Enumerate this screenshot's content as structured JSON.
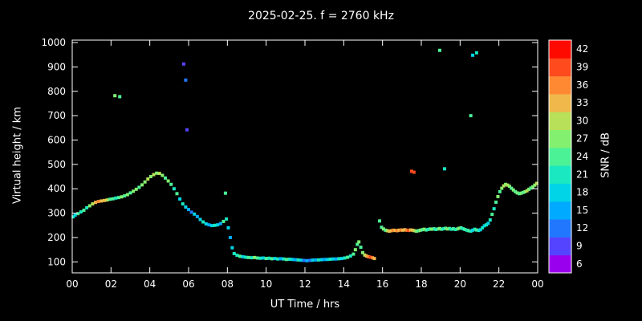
{
  "page": {
    "background": "#000000",
    "foreground": "#ffffff"
  },
  "chart_data": {
    "type": "scatter",
    "title": "2025-02-25. f = 2760 kHz",
    "xlabel": "UT Time / hrs",
    "ylabel": "Virtual height / km",
    "xlim": [
      0,
      24
    ],
    "ylim": [
      100,
      1000
    ],
    "grid": false,
    "x_tick_values": [
      0,
      2,
      4,
      6,
      8,
      10,
      12,
      14,
      16,
      18,
      20,
      22,
      24
    ],
    "x_tick_labels": [
      "00",
      "02",
      "04",
      "06",
      "08",
      "10",
      "12",
      "14",
      "16",
      "18",
      "20",
      "22",
      "00"
    ],
    "y_tick_values": [
      100,
      200,
      300,
      400,
      500,
      600,
      700,
      800,
      900,
      1000
    ],
    "colorbar": {
      "label": "SNR / dB",
      "tick_values": [
        6,
        9,
        12,
        15,
        18,
        21,
        24,
        27,
        30,
        33,
        36,
        39,
        42
      ],
      "colors": [
        "#9900ee",
        "#5544ff",
        "#2277ff",
        "#00aaff",
        "#00d4e6",
        "#1ae8c0",
        "#4cf296",
        "#84f070",
        "#b8e058",
        "#f0b84a",
        "#ff8832",
        "#ff4a1e",
        "#ff0a00"
      ]
    },
    "point_format": "[ut_hour, virtual_height_km, snr_db]",
    "points": [
      [
        0.05,
        285,
        21
      ],
      [
        0.15,
        292,
        18
      ],
      [
        0.3,
        298,
        24
      ],
      [
        0.45,
        305,
        21
      ],
      [
        0.6,
        312,
        24
      ],
      [
        0.75,
        322,
        21
      ],
      [
        0.9,
        330,
        27
      ],
      [
        1.05,
        338,
        30
      ],
      [
        1.2,
        344,
        33
      ],
      [
        1.35,
        348,
        36
      ],
      [
        1.5,
        350,
        33
      ],
      [
        1.65,
        352,
        33
      ],
      [
        1.8,
        354,
        30
      ],
      [
        1.95,
        357,
        24
      ],
      [
        2.1,
        359,
        24
      ],
      [
        2.25,
        362,
        21
      ],
      [
        2.4,
        364,
        24
      ],
      [
        2.55,
        367,
        27
      ],
      [
        2.7,
        371,
        24
      ],
      [
        2.85,
        376,
        27
      ],
      [
        3.0,
        383,
        24
      ],
      [
        3.15,
        390,
        27
      ],
      [
        3.3,
        398,
        27
      ],
      [
        3.45,
        406,
        24
      ],
      [
        3.6,
        416,
        27
      ],
      [
        3.75,
        428,
        27
      ],
      [
        3.9,
        440,
        30
      ],
      [
        4.05,
        450,
        27
      ],
      [
        4.2,
        458,
        30
      ],
      [
        4.35,
        464,
        27
      ],
      [
        4.5,
        463,
        30
      ],
      [
        4.65,
        455,
        27
      ],
      [
        4.8,
        444,
        24
      ],
      [
        4.95,
        432,
        27
      ],
      [
        2.2,
        782,
        27
      ],
      [
        2.45,
        778,
        24
      ],
      [
        5.1,
        418,
        24
      ],
      [
        5.25,
        400,
        21
      ],
      [
        5.4,
        380,
        24
      ],
      [
        5.55,
        358,
        18
      ],
      [
        5.7,
        338,
        21
      ],
      [
        5.75,
        912,
        9
      ],
      [
        5.85,
        846,
        12
      ],
      [
        5.92,
        642,
        9
      ],
      [
        5.85,
        325,
        18
      ],
      [
        6.0,
        315,
        15
      ],
      [
        6.15,
        304,
        12
      ],
      [
        6.3,
        296,
        18
      ],
      [
        6.45,
        286,
        15
      ],
      [
        6.6,
        274,
        18
      ],
      [
        6.75,
        264,
        21
      ],
      [
        6.9,
        256,
        18
      ],
      [
        7.05,
        252,
        15
      ],
      [
        7.2,
        249,
        18
      ],
      [
        7.35,
        250,
        21
      ],
      [
        7.5,
        252,
        18
      ],
      [
        7.65,
        257,
        15
      ],
      [
        7.8,
        266,
        24
      ],
      [
        7.9,
        382,
        24
      ],
      [
        7.95,
        276,
        21
      ],
      [
        8.05,
        240,
        18
      ],
      [
        8.15,
        200,
        15
      ],
      [
        8.25,
        158,
        18
      ],
      [
        8.35,
        134,
        21
      ],
      [
        8.5,
        127,
        21
      ],
      [
        8.65,
        123,
        24
      ],
      [
        8.8,
        121,
        18
      ],
      [
        8.95,
        119,
        21
      ],
      [
        9.1,
        118,
        24
      ],
      [
        9.25,
        117,
        21
      ],
      [
        9.4,
        118,
        27
      ],
      [
        9.55,
        116,
        24
      ],
      [
        9.7,
        115,
        21
      ],
      [
        9.85,
        116,
        18
      ],
      [
        10.0,
        114,
        24
      ],
      [
        10.15,
        115,
        21
      ],
      [
        10.3,
        113,
        24
      ],
      [
        10.45,
        114,
        18
      ],
      [
        10.6,
        112,
        21
      ],
      [
        10.75,
        113,
        15
      ],
      [
        10.9,
        112,
        21
      ],
      [
        11.05,
        110,
        24
      ],
      [
        11.2,
        111,
        21
      ],
      [
        11.35,
        110,
        18
      ],
      [
        11.5,
        109,
        15
      ],
      [
        11.65,
        108,
        21
      ],
      [
        11.8,
        107,
        18
      ],
      [
        11.95,
        106,
        12
      ],
      [
        12.1,
        105,
        15
      ],
      [
        12.25,
        106,
        12
      ],
      [
        12.4,
        107,
        18
      ],
      [
        12.55,
        108,
        15
      ],
      [
        12.7,
        108,
        21
      ],
      [
        12.85,
        109,
        18
      ],
      [
        13.0,
        110,
        15
      ],
      [
        13.15,
        110,
        18
      ],
      [
        13.3,
        111,
        21
      ],
      [
        13.45,
        112,
        18
      ],
      [
        13.6,
        112,
        15
      ],
      [
        13.75,
        113,
        21
      ],
      [
        13.9,
        114,
        18
      ],
      [
        14.05,
        116,
        21
      ],
      [
        14.2,
        119,
        24
      ],
      [
        14.35,
        124,
        21
      ],
      [
        14.5,
        132,
        24
      ],
      [
        14.6,
        150,
        27
      ],
      [
        14.7,
        172,
        24
      ],
      [
        14.78,
        182,
        27
      ],
      [
        14.88,
        160,
        24
      ],
      [
        14.98,
        138,
        27
      ],
      [
        15.08,
        128,
        30
      ],
      [
        15.18,
        124,
        33
      ],
      [
        15.28,
        121,
        36
      ],
      [
        15.38,
        119,
        39
      ],
      [
        15.48,
        117,
        36
      ],
      [
        15.58,
        114,
        33
      ],
      [
        15.85,
        268,
        24
      ],
      [
        15.95,
        242,
        24
      ],
      [
        16.05,
        235,
        27
      ],
      [
        16.15,
        230,
        24
      ],
      [
        16.25,
        228,
        30
      ],
      [
        16.35,
        226,
        33
      ],
      [
        16.45,
        228,
        33
      ],
      [
        16.55,
        230,
        36
      ],
      [
        16.65,
        229,
        33
      ],
      [
        16.75,
        228,
        36
      ],
      [
        16.85,
        230,
        33
      ],
      [
        16.95,
        231,
        36
      ],
      [
        17.05,
        230,
        33
      ],
      [
        17.15,
        232,
        33
      ],
      [
        17.25,
        230,
        36
      ],
      [
        17.35,
        229,
        39
      ],
      [
        17.45,
        231,
        33
      ],
      [
        17.55,
        230,
        33
      ],
      [
        17.65,
        228,
        30
      ],
      [
        17.75,
        226,
        27
      ],
      [
        17.85,
        228,
        24
      ],
      [
        17.95,
        230,
        27
      ],
      [
        18.05,
        232,
        24
      ],
      [
        18.15,
        234,
        27
      ],
      [
        18.25,
        231,
        24
      ],
      [
        18.35,
        233,
        21
      ],
      [
        18.45,
        235,
        24
      ],
      [
        18.55,
        234,
        27
      ],
      [
        18.65,
        236,
        24
      ],
      [
        18.75,
        233,
        21
      ],
      [
        18.85,
        235,
        24
      ],
      [
        18.95,
        237,
        27
      ],
      [
        19.05,
        234,
        24
      ],
      [
        19.15,
        236,
        21
      ],
      [
        19.25,
        238,
        24
      ],
      [
        19.35,
        235,
        27
      ],
      [
        19.45,
        237,
        24
      ],
      [
        19.55,
        234,
        21
      ],
      [
        19.65,
        236,
        24
      ],
      [
        19.75,
        233,
        21
      ],
      [
        19.85,
        235,
        24
      ],
      [
        19.95,
        238,
        27
      ],
      [
        20.05,
        240,
        24
      ],
      [
        20.15,
        236,
        21
      ],
      [
        20.25,
        233,
        24
      ],
      [
        20.35,
        230,
        21
      ],
      [
        20.45,
        228,
        24
      ],
      [
        20.55,
        226,
        21
      ],
      [
        20.65,
        230,
        18
      ],
      [
        20.75,
        234,
        21
      ],
      [
        20.85,
        231,
        24
      ],
      [
        20.95,
        229,
        21
      ],
      [
        21.05,
        232,
        18
      ],
      [
        21.15,
        240,
        21
      ],
      [
        21.25,
        248,
        18
      ],
      [
        21.35,
        252,
        21
      ],
      [
        21.45,
        258,
        18
      ],
      [
        17.5,
        472,
        39
      ],
      [
        17.62,
        468,
        39
      ],
      [
        18.95,
        968,
        24
      ],
      [
        19.2,
        482,
        21
      ],
      [
        20.55,
        700,
        24
      ],
      [
        20.65,
        948,
        18
      ],
      [
        20.85,
        958,
        21
      ],
      [
        21.55,
        272,
        21
      ],
      [
        21.65,
        295,
        24
      ],
      [
        21.75,
        318,
        21
      ],
      [
        21.85,
        345,
        24
      ],
      [
        21.95,
        368,
        27
      ],
      [
        22.05,
        388,
        24
      ],
      [
        22.15,
        402,
        27
      ],
      [
        22.25,
        412,
        30
      ],
      [
        22.35,
        418,
        27
      ],
      [
        22.45,
        415,
        30
      ],
      [
        22.55,
        410,
        27
      ],
      [
        22.65,
        402,
        24
      ],
      [
        22.75,
        395,
        27
      ],
      [
        22.85,
        388,
        24
      ],
      [
        22.95,
        383,
        27
      ],
      [
        23.05,
        380,
        24
      ],
      [
        23.15,
        382,
        27
      ],
      [
        23.25,
        385,
        24
      ],
      [
        23.35,
        388,
        27
      ],
      [
        23.45,
        392,
        30
      ],
      [
        23.55,
        398,
        27
      ],
      [
        23.65,
        403,
        24
      ],
      [
        23.75,
        408,
        27
      ],
      [
        23.85,
        415,
        27
      ],
      [
        23.95,
        422,
        30
      ]
    ]
  }
}
